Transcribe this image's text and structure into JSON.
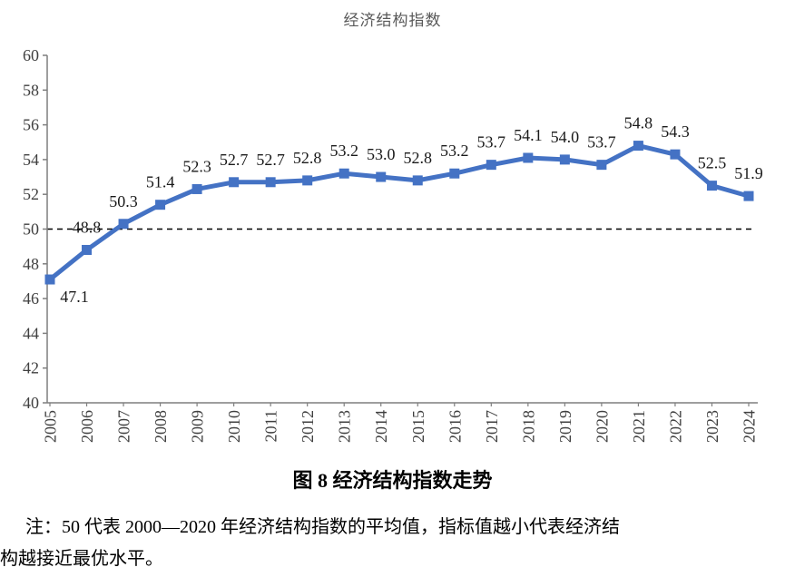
{
  "chart": {
    "title": "经济结构指数",
    "colors": {
      "line": "#4472C4",
      "marker": "#4472C4",
      "axis": "#7f7f7f",
      "tick_label": "#404040",
      "data_label": "#1a1a1a",
      "title": "#595959",
      "reference_line": "#000000"
    }
  },
  "chart_data": {
    "type": "line",
    "title": "经济结构指数",
    "categories": [
      "2005",
      "2006",
      "2007",
      "2008",
      "2009",
      "2010",
      "2011",
      "2012",
      "2013",
      "2014",
      "2015",
      "2016",
      "2017",
      "2018",
      "2019",
      "2020",
      "2021",
      "2022",
      "2023",
      "2024"
    ],
    "values": [
      47.1,
      48.8,
      50.3,
      51.4,
      52.3,
      52.7,
      52.7,
      52.8,
      53.2,
      53.0,
      52.8,
      53.2,
      53.7,
      54.1,
      54.0,
      53.7,
      54.8,
      54.3,
      52.5,
      51.9
    ],
    "data_labels": [
      "47.1",
      "48.8",
      "50.3",
      "51.4",
      "52.3",
      "52.7",
      "52.7",
      "52.8",
      "53.2",
      "53.0",
      "52.8",
      "53.2",
      "53.7",
      "54.1",
      "54.0",
      "53.7",
      "54.8",
      "54.3",
      "52.5",
      "51.9"
    ],
    "xlabel": "",
    "ylabel": "",
    "ylim": [
      40,
      60
    ],
    "ytick_step": 2,
    "yticks": [
      "40",
      "42",
      "44",
      "46",
      "48",
      "50",
      "52",
      "54",
      "56",
      "58",
      "60"
    ],
    "reference_line_value": 50,
    "grid": false,
    "legend": null,
    "marker": "square"
  },
  "caption": {
    "text": "图 8  经济结构指数走势"
  },
  "note": {
    "line1": "注：50 代表 2000—2020 年经济结构指数的平均值，指标值越小代表经济结",
    "line2": "构越接近最优水平。"
  }
}
